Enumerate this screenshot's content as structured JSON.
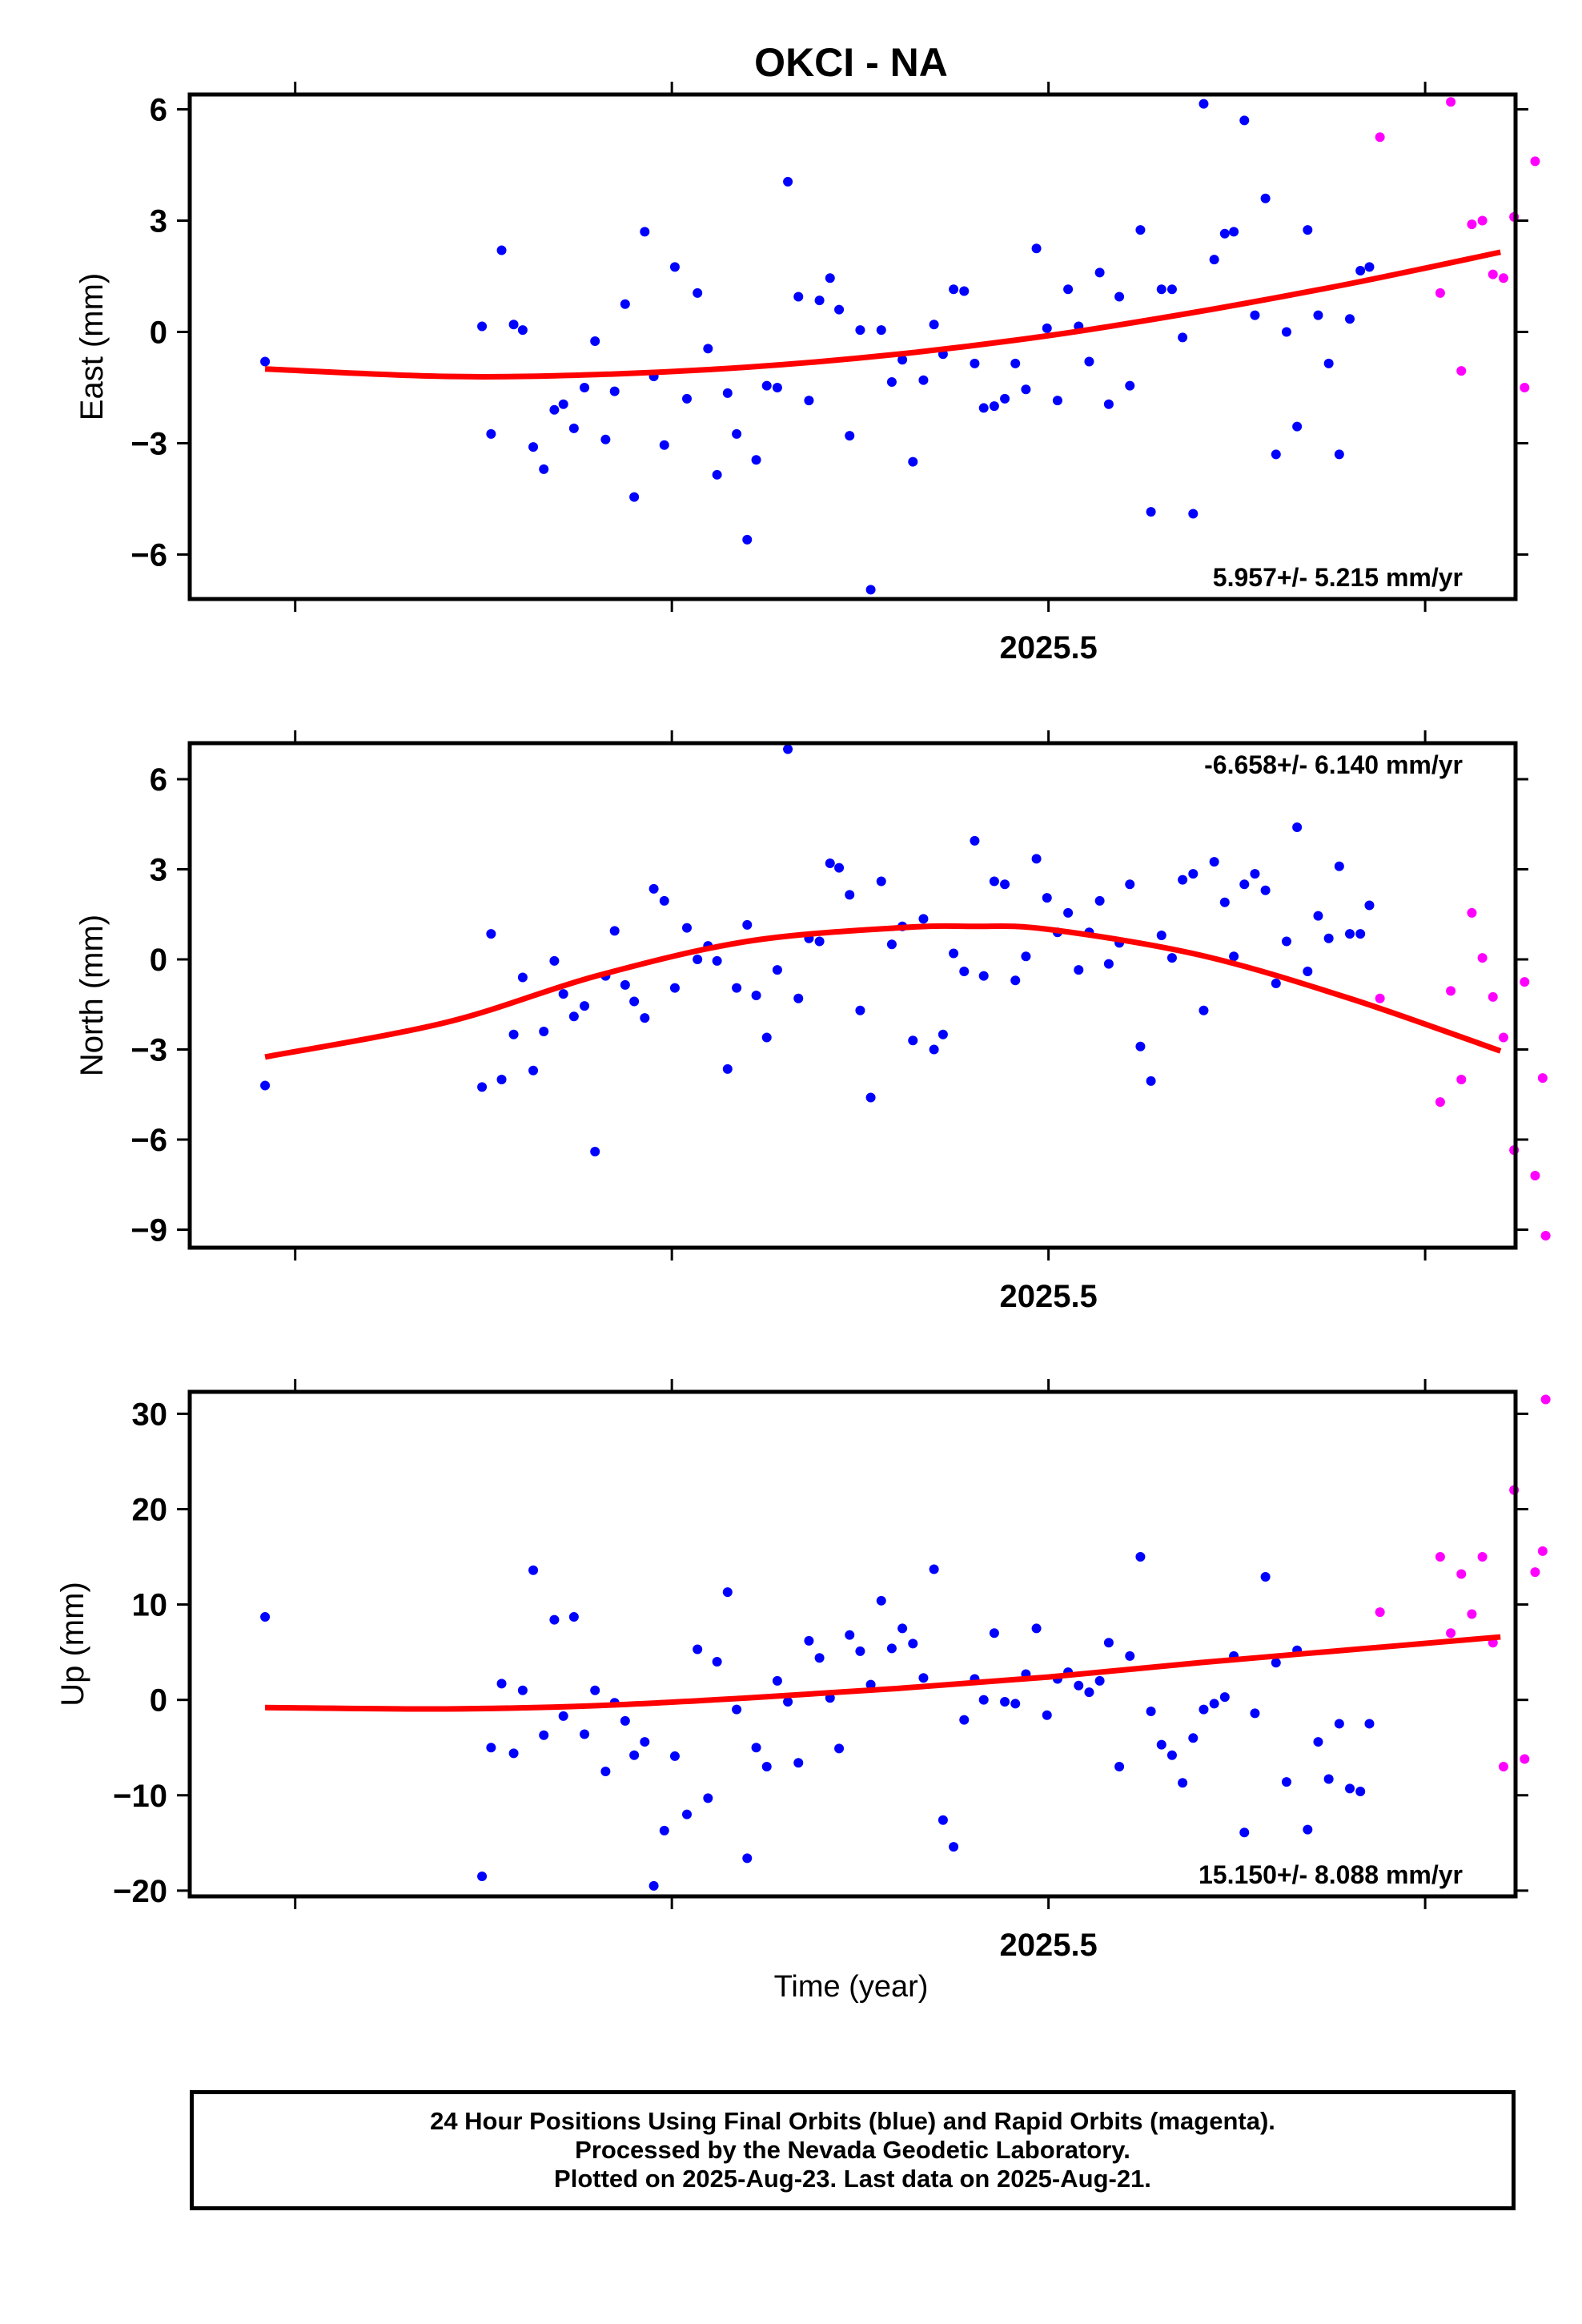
{
  "chart_data": {
    "type": "scatter",
    "title": "OKCI - NA",
    "xlabel": "Time (year)",
    "xlim": [
      2024.93,
      2025.81
    ],
    "xticks": [
      2025.25,
      2025.5,
      2025.75
    ],
    "xticklabels_shown": {
      "2025.5": "2025.5"
    },
    "colors": {
      "final": "#0000ff",
      "rapid": "#ff00ff",
      "fit": "#ff0000"
    },
    "legend_note": "24 Hour Positions Using Final Orbits (blue) and Rapid Orbits (magenta).",
    "panels": [
      {
        "id": "east",
        "ylabel": "East (mm)",
        "ylim": [
          -7.2,
          6.4
        ],
        "yticks": [
          -6,
          -3,
          0,
          3,
          6
        ],
        "yticklabels": [
          "−6",
          "−3",
          "0",
          "3",
          "6"
        ],
        "rate_label": "5.957+/- 5.215 mm/yr",
        "rate_position": "bottom-right",
        "fit": {
          "x": [
            2024.98,
            2025.1,
            2025.2,
            2025.3,
            2025.4,
            2025.5,
            2025.6,
            2025.7,
            2025.8
          ],
          "y": [
            -1.0,
            -1.2,
            -1.15,
            -0.95,
            -0.6,
            -0.1,
            0.55,
            1.3,
            2.15
          ]
        },
        "final": {
          "x": [
            2024.98,
            2025.124,
            2025.13,
            2025.137,
            2025.145,
            2025.151,
            2025.158,
            2025.165,
            2025.172,
            2025.178,
            2025.185,
            2025.192,
            2025.199,
            2025.206,
            2025.212,
            2025.219,
            2025.225,
            2025.232,
            2025.238,
            2025.245,
            2025.252,
            2025.26,
            2025.267,
            2025.274,
            2025.28,
            2025.287,
            2025.293,
            2025.3,
            2025.306,
            2025.313,
            2025.32,
            2025.327,
            2025.334,
            2025.341,
            2025.348,
            2025.355,
            2025.361,
            2025.368,
            2025.375,
            2025.382,
            2025.389,
            2025.396,
            2025.403,
            2025.41,
            2025.417,
            2025.424,
            2025.43,
            2025.437,
            2025.444,
            2025.451,
            2025.457,
            2025.464,
            2025.471,
            2025.478,
            2025.485,
            2025.492,
            2025.499,
            2025.506,
            2025.513,
            2025.52,
            2025.527,
            2025.534,
            2025.54,
            2025.547,
            2025.554,
            2025.561,
            2025.568,
            2025.575,
            2025.582,
            2025.589,
            2025.596,
            2025.603,
            2025.61,
            2025.617,
            2025.623,
            2025.63,
            2025.637,
            2025.644,
            2025.651,
            2025.658,
            2025.665,
            2025.672,
            2025.679,
            2025.686,
            2025.693,
            2025.7,
            2025.707,
            2025.713
          ],
          "y": [
            -0.8,
            0.15,
            -2.75,
            2.2,
            0.2,
            0.05,
            -3.1,
            -3.7,
            -2.1,
            -1.95,
            -2.6,
            -1.5,
            -0.25,
            -2.9,
            -1.6,
            0.75,
            -4.45,
            2.7,
            -1.2,
            -3.05,
            1.75,
            -1.8,
            1.05,
            -0.45,
            -3.85,
            -1.65,
            -2.75,
            -5.6,
            -3.45,
            -1.45,
            -1.5,
            4.05,
            0.95,
            -1.85,
            0.85,
            1.45,
            0.6,
            -2.8,
            0.05,
            -6.95,
            0.05,
            -1.35,
            -0.75,
            -3.5,
            -1.3,
            0.2,
            -0.6,
            1.15,
            1.1,
            -0.85,
            -2.05,
            -2.0,
            -1.8,
            -0.85,
            -1.55,
            2.25,
            0.1,
            -1.85,
            1.15,
            0.15,
            -0.8,
            1.6,
            -1.95,
            0.95,
            -1.45,
            2.75,
            -4.85,
            1.15,
            1.15,
            -0.15,
            -4.9,
            6.15,
            1.95,
            2.65,
            2.7,
            5.7,
            0.45,
            3.6,
            -3.3,
            0.0,
            -2.55,
            2.75,
            0.45,
            -0.85,
            -3.3,
            0.35,
            1.65,
            1.75
          ]
        },
        "rapid": {
          "x": [
            2025.72,
            2025.76,
            2025.767,
            2025.774,
            2025.781,
            2025.788,
            2025.795,
            2025.802,
            2025.809,
            2025.816,
            2025.823
          ],
          "y": [
            5.25,
            1.05,
            6.2,
            -1.05,
            2.9,
            3.0,
            1.55,
            1.45,
            3.1,
            -1.5,
            4.6
          ]
        }
      },
      {
        "id": "north",
        "ylabel": "North (mm)",
        "ylim": [
          -9.6,
          7.2
        ],
        "yticks": [
          -9,
          -6,
          -3,
          0,
          3,
          6
        ],
        "yticklabels": [
          "−9",
          "−6",
          "−3",
          "0",
          "3",
          "6"
        ],
        "rate_label": "-6.658+/- 6.140 mm/yr",
        "rate_position": "top-right",
        "fit": {
          "x": [
            2024.98,
            2025.1,
            2025.2,
            2025.3,
            2025.4,
            2025.45,
            2025.5,
            2025.6,
            2025.7,
            2025.8
          ],
          "y": [
            -3.25,
            -2.1,
            -0.55,
            0.6,
            1.05,
            1.1,
            1.0,
            0.15,
            -1.3,
            -3.05
          ]
        },
        "final": {
          "x": [
            2024.98,
            2025.124,
            2025.13,
            2025.137,
            2025.145,
            2025.151,
            2025.158,
            2025.165,
            2025.172,
            2025.178,
            2025.185,
            2025.192,
            2025.199,
            2025.206,
            2025.212,
            2025.219,
            2025.225,
            2025.232,
            2025.238,
            2025.245,
            2025.252,
            2025.26,
            2025.267,
            2025.274,
            2025.28,
            2025.287,
            2025.293,
            2025.3,
            2025.306,
            2025.313,
            2025.32,
            2025.327,
            2025.334,
            2025.341,
            2025.348,
            2025.355,
            2025.361,
            2025.368,
            2025.375,
            2025.382,
            2025.389,
            2025.396,
            2025.403,
            2025.41,
            2025.417,
            2025.424,
            2025.43,
            2025.437,
            2025.444,
            2025.451,
            2025.457,
            2025.464,
            2025.471,
            2025.478,
            2025.485,
            2025.492,
            2025.499,
            2025.506,
            2025.513,
            2025.52,
            2025.527,
            2025.534,
            2025.54,
            2025.547,
            2025.554,
            2025.561,
            2025.568,
            2025.575,
            2025.582,
            2025.589,
            2025.596,
            2025.603,
            2025.61,
            2025.617,
            2025.623,
            2025.63,
            2025.637,
            2025.644,
            2025.651,
            2025.658,
            2025.665,
            2025.672,
            2025.679,
            2025.686,
            2025.693,
            2025.7,
            2025.707,
            2025.713
          ],
          "y": [
            -4.2,
            -4.25,
            0.85,
            -4.0,
            -2.5,
            -0.6,
            -3.7,
            -2.4,
            -0.05,
            -1.15,
            -1.9,
            -1.55,
            -6.4,
            -0.55,
            0.95,
            -0.85,
            -1.4,
            -1.95,
            2.35,
            1.95,
            -0.95,
            1.05,
            0.0,
            0.45,
            -0.05,
            -3.65,
            -0.95,
            1.15,
            -1.2,
            -2.6,
            -0.35,
            7.0,
            -1.3,
            0.7,
            0.6,
            3.2,
            3.05,
            2.15,
            -1.7,
            -4.6,
            2.6,
            0.5,
            1.1,
            -2.7,
            1.35,
            -3.0,
            -2.5,
            0.2,
            -0.4,
            3.95,
            -0.55,
            2.6,
            2.5,
            -0.7,
            0.1,
            3.35,
            2.05,
            0.9,
            1.55,
            -0.35,
            0.9,
            1.95,
            -0.15,
            0.55,
            2.5,
            -2.9,
            -4.05,
            0.8,
            0.05,
            2.65,
            2.85,
            -1.7,
            3.25,
            1.9,
            0.1,
            2.5,
            2.85,
            2.3,
            -0.8,
            0.6,
            4.4,
            -0.4,
            1.45,
            0.7,
            3.1,
            0.85,
            0.85,
            1.8
          ]
        },
        "rapid": {
          "x": [
            2025.72,
            2025.76,
            2025.767,
            2025.774,
            2025.781,
            2025.788,
            2025.795,
            2025.802,
            2025.809,
            2025.816,
            2025.823,
            2025.828
          ],
          "y": [
            -1.3,
            -4.75,
            -1.05,
            -4.0,
            1.55,
            0.05,
            -1.25,
            -2.6,
            -6.35,
            -0.75,
            -7.2,
            -3.95
          ]
        },
        "rapid_extra": {
          "x": [
            2025.83
          ],
          "y": [
            -9.2
          ]
        }
      },
      {
        "id": "up",
        "ylabel": "Up (mm)",
        "ylim": [
          -20.6,
          32.3
        ],
        "yticks": [
          -20,
          -10,
          0,
          10,
          20,
          30
        ],
        "yticklabels": [
          "−20",
          "−10",
          "0",
          "10",
          "20",
          "30"
        ],
        "rate_label": "15.150+/- 8.088 mm/yr",
        "rate_position": "bottom-right",
        "fit": {
          "x": [
            2024.98,
            2025.1,
            2025.2,
            2025.3,
            2025.4,
            2025.5,
            2025.6,
            2025.7,
            2025.8
          ],
          "y": [
            -0.8,
            -0.95,
            -0.6,
            0.2,
            1.2,
            2.4,
            3.9,
            5.25,
            6.6
          ]
        },
        "final": {
          "x": [
            2024.98,
            2025.124,
            2025.13,
            2025.137,
            2025.145,
            2025.151,
            2025.158,
            2025.165,
            2025.172,
            2025.178,
            2025.185,
            2025.192,
            2025.199,
            2025.206,
            2025.212,
            2025.219,
            2025.225,
            2025.232,
            2025.238,
            2025.245,
            2025.252,
            2025.26,
            2025.267,
            2025.274,
            2025.28,
            2025.287,
            2025.293,
            2025.3,
            2025.306,
            2025.313,
            2025.32,
            2025.327,
            2025.334,
            2025.341,
            2025.348,
            2025.355,
            2025.361,
            2025.368,
            2025.375,
            2025.382,
            2025.389,
            2025.396,
            2025.403,
            2025.41,
            2025.417,
            2025.424,
            2025.43,
            2025.437,
            2025.444,
            2025.451,
            2025.457,
            2025.464,
            2025.471,
            2025.478,
            2025.485,
            2025.492,
            2025.499,
            2025.506,
            2025.513,
            2025.52,
            2025.527,
            2025.534,
            2025.54,
            2025.547,
            2025.554,
            2025.561,
            2025.568,
            2025.575,
            2025.582,
            2025.589,
            2025.596,
            2025.603,
            2025.61,
            2025.617,
            2025.623,
            2025.63,
            2025.637,
            2025.644,
            2025.651,
            2025.658,
            2025.665,
            2025.672,
            2025.679,
            2025.686,
            2025.693,
            2025.7,
            2025.707,
            2025.713
          ],
          "y": [
            8.7,
            -18.5,
            -5.0,
            1.7,
            -5.6,
            1.0,
            13.6,
            -3.7,
            8.4,
            -1.7,
            8.7,
            -3.6,
            1.0,
            -7.5,
            -0.3,
            -2.2,
            -5.8,
            -4.4,
            -19.5,
            -13.7,
            -5.9,
            -12.0,
            5.3,
            -10.3,
            4.0,
            11.3,
            -1.0,
            -16.6,
            -5.0,
            -7.0,
            2.0,
            -0.2,
            -6.6,
            6.2,
            4.4,
            0.2,
            -5.1,
            6.8,
            5.1,
            1.6,
            10.4,
            5.4,
            7.5,
            5.9,
            2.3,
            13.7,
            -12.6,
            -15.4,
            -2.1,
            2.2,
            0.0,
            7.0,
            -0.2,
            -0.4,
            2.7,
            7.5,
            -1.6,
            2.2,
            2.9,
            1.5,
            0.8,
            2.0,
            6.0,
            -7.0,
            4.6,
            15.0,
            -1.2,
            -4.7,
            -5.8,
            -8.7,
            -4.0,
            -1.0,
            -0.4,
            0.3,
            4.6,
            -13.9,
            -1.4,
            12.9,
            3.9,
            -8.6,
            5.2,
            -13.6,
            -4.4,
            -8.3,
            -2.5,
            -9.3,
            -9.6,
            -2.5
          ]
        },
        "rapid": {
          "x": [
            2025.72,
            2025.76,
            2025.767,
            2025.774,
            2025.781,
            2025.788,
            2025.795,
            2025.802,
            2025.809,
            2025.816,
            2025.823,
            2025.828
          ],
          "y": [
            9.2,
            15.0,
            7.0,
            13.2,
            9.0,
            15.0,
            6.0,
            -7.0,
            22.0,
            -6.2,
            13.4,
            15.6
          ]
        },
        "rapid_extra": {
          "x": [
            2025.83
          ],
          "y": [
            31.5
          ]
        }
      }
    ]
  },
  "footer": {
    "line1": "24 Hour Positions Using Final Orbits (blue) and Rapid Orbits (magenta).",
    "line2": "Processed by the Nevada Geodetic Laboratory.",
    "line3": "Plotted on 2025-Aug-23. Last data on 2025-Aug-21."
  }
}
